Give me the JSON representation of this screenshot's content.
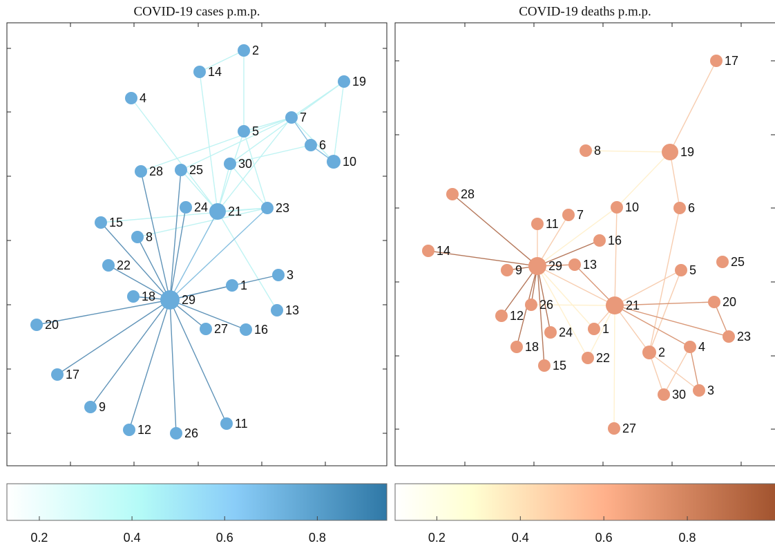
{
  "panels": [
    {
      "title": "COVID-19 cases p.m.p.",
      "nodes": [
        "2",
        "14",
        "19",
        "4",
        "7",
        "5",
        "6",
        "10",
        "28",
        "25",
        "30",
        "24",
        "21",
        "23",
        "15",
        "8",
        "22",
        "3",
        "1",
        "18",
        "29",
        "13",
        "20",
        "27",
        "16",
        "17",
        "9",
        "12",
        "26",
        "11"
      ],
      "colorbar": {
        "clim": [
          0.13,
          0.95
        ],
        "ticks": [
          0.2,
          0.4,
          0.6,
          0.8
        ]
      }
    },
    {
      "title": "COVID-19 deaths p.m.p.",
      "nodes": [
        "17",
        "8",
        "19",
        "28",
        "10",
        "6",
        "7",
        "11",
        "16",
        "14",
        "29",
        "9",
        "13",
        "5",
        "25",
        "21",
        "20",
        "26",
        "12",
        "1",
        "24",
        "4",
        "23",
        "18",
        "2",
        "22",
        "15",
        "30",
        "3",
        "27"
      ],
      "colorbar": {
        "clim": [
          0.1,
          1.01
        ],
        "ticks": [
          0.2,
          0.4,
          0.6,
          0.8
        ]
      }
    }
  ]
}
